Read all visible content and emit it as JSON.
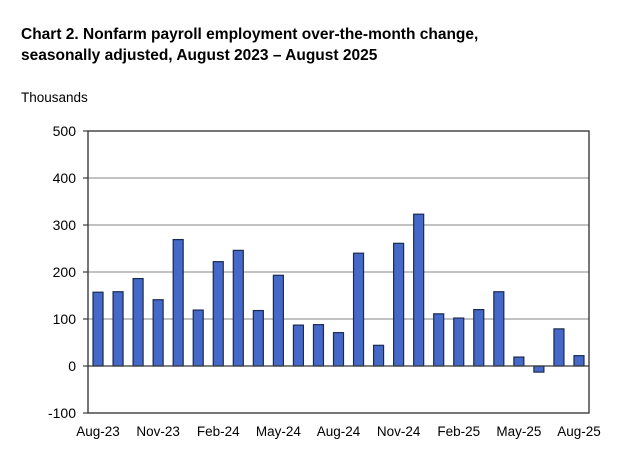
{
  "title": {
    "line1": "Chart 2. Nonfarm payroll employment over-the-month change,",
    "line2": "seasonally adjusted, August 2023 – August 2025"
  },
  "units_label": "Thousands",
  "chart_data": {
    "type": "bar",
    "title": "Chart 2. Nonfarm payroll employment over-the-month change, seasonally adjusted, August 2023 – August 2025",
    "xlabel": "",
    "ylabel": "Thousands",
    "ylim": [
      -100,
      500
    ],
    "yticks": [
      -100,
      0,
      100,
      200,
      300,
      400,
      500
    ],
    "grid": true,
    "legend": "none",
    "xtick_label_every": 3,
    "categories": [
      "Aug-23",
      "Sep-23",
      "Oct-23",
      "Nov-23",
      "Dec-23",
      "Jan-24",
      "Feb-24",
      "Mar-24",
      "Apr-24",
      "May-24",
      "Jun-24",
      "Jul-24",
      "Aug-24",
      "Sep-24",
      "Oct-24",
      "Nov-24",
      "Dec-24",
      "Jan-25",
      "Feb-25",
      "Mar-25",
      "Apr-25",
      "May-25",
      "Jun-25",
      "Jul-25",
      "Aug-25"
    ],
    "values": [
      157,
      158,
      186,
      141,
      269,
      119,
      222,
      246,
      118,
      193,
      87,
      88,
      71,
      240,
      44,
      261,
      323,
      111,
      102,
      120,
      158,
      19,
      -13,
      79,
      22
    ],
    "visible_xtick_labels": [
      "Aug-23",
      "Nov-23",
      "Feb-24",
      "May-24",
      "Aug-24",
      "Nov-24",
      "Feb-25",
      "May-25",
      "Aug-25"
    ],
    "colors": {
      "bar_fill": "#4569C8",
      "bar_border": "#1A2A52",
      "gridline": "#848484",
      "axis_frame": "#3B3B3B",
      "zero_line": "#3B3B3B",
      "text": "#000000",
      "background": "#FFFFFF"
    }
  }
}
